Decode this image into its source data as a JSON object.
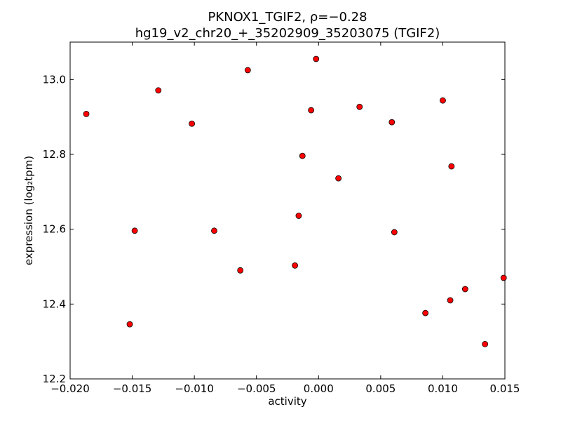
{
  "chart_data": {
    "type": "scatter",
    "title_line1": "PKNOX1_TGIF2, ρ=−0.28",
    "title_line2": "hg19_v2_chr20_+_35202909_35203075 (TGIF2)",
    "xlabel": "activity",
    "ylabel": "expression (log₂tpm)",
    "xlim": [
      -0.02,
      0.015
    ],
    "ylim": [
      12.2,
      13.1
    ],
    "xticks": [
      -0.02,
      -0.015,
      -0.01,
      -0.005,
      0.0,
      0.005,
      0.01,
      0.015
    ],
    "xtick_labels": [
      "−0.020",
      "−0.015",
      "−0.010",
      "−0.005",
      "0.000",
      "0.005",
      "0.010",
      "0.015"
    ],
    "yticks": [
      12.2,
      12.4,
      12.6,
      12.8,
      13.0
    ],
    "ytick_labels": [
      "12.2",
      "12.4",
      "12.6",
      "12.8",
      "13.0"
    ],
    "grid": false,
    "marker_color": "#ff0000",
    "marker_edge_color": "#000000",
    "points": [
      {
        "x": -0.0187,
        "y": 12.908
      },
      {
        "x": -0.0152,
        "y": 12.346
      },
      {
        "x": -0.0148,
        "y": 12.596
      },
      {
        "x": -0.0129,
        "y": 12.971
      },
      {
        "x": -0.0102,
        "y": 12.882
      },
      {
        "x": -0.0084,
        "y": 12.596
      },
      {
        "x": -0.0063,
        "y": 12.49
      },
      {
        "x": -0.0057,
        "y": 13.025
      },
      {
        "x": -0.0019,
        "y": 12.503
      },
      {
        "x": -0.0016,
        "y": 12.636
      },
      {
        "x": -0.0013,
        "y": 12.796
      },
      {
        "x": -0.0006,
        "y": 12.918
      },
      {
        "x": -0.0002,
        "y": 13.055
      },
      {
        "x": 0.0016,
        "y": 12.736
      },
      {
        "x": 0.0033,
        "y": 12.927
      },
      {
        "x": 0.0059,
        "y": 12.886
      },
      {
        "x": 0.0061,
        "y": 12.592
      },
      {
        "x": 0.0086,
        "y": 12.376
      },
      {
        "x": 0.01,
        "y": 12.944
      },
      {
        "x": 0.0106,
        "y": 12.41
      },
      {
        "x": 0.0107,
        "y": 12.768
      },
      {
        "x": 0.0118,
        "y": 12.44
      },
      {
        "x": 0.0134,
        "y": 12.293
      },
      {
        "x": 0.0149,
        "y": 12.47
      }
    ]
  }
}
